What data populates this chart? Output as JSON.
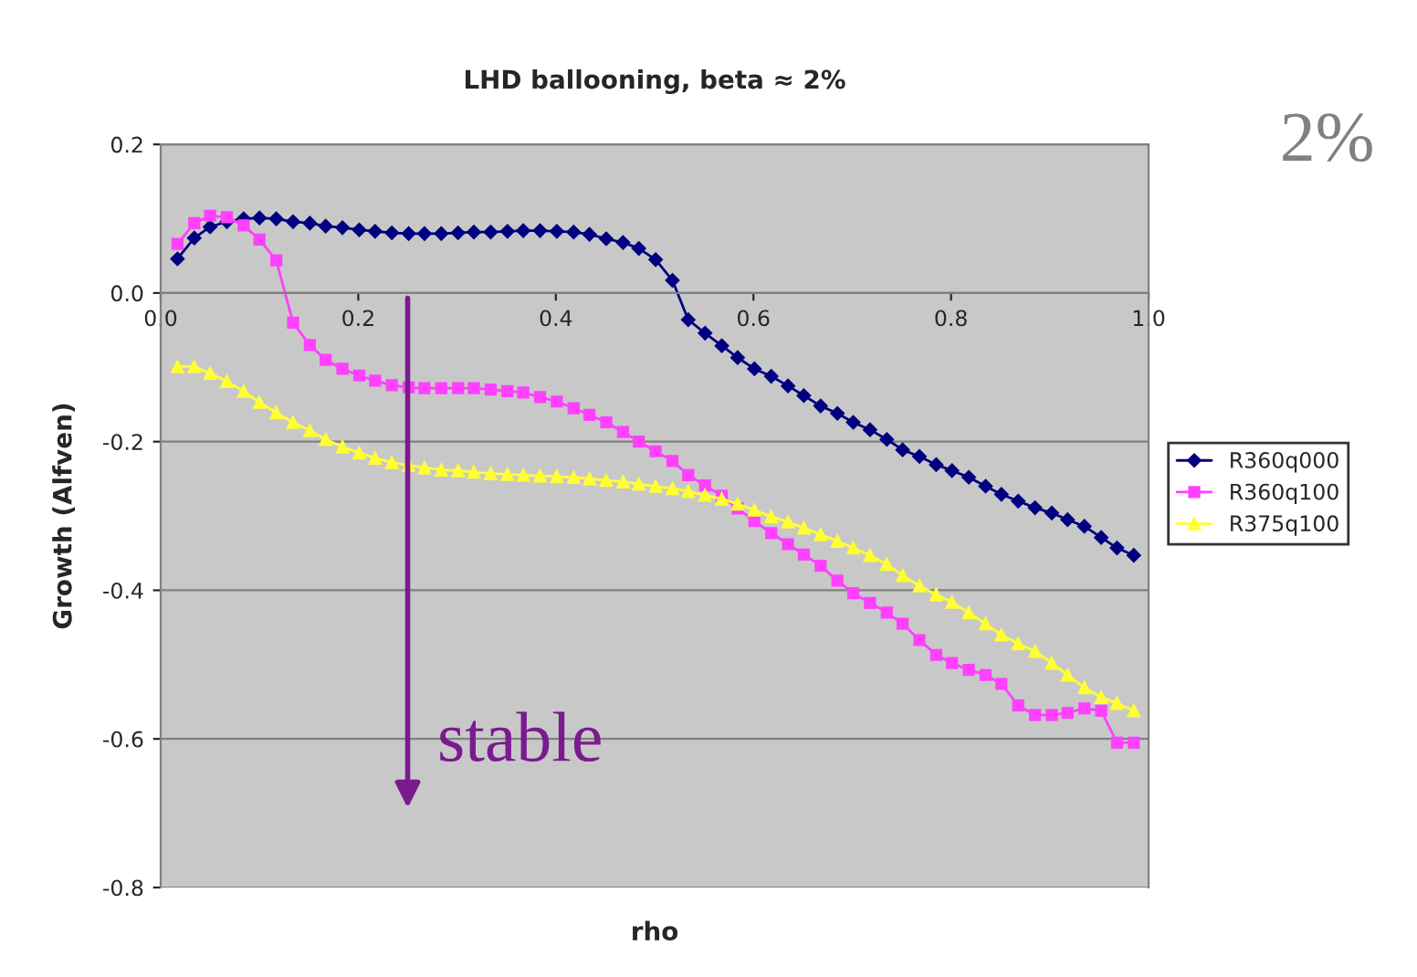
{
  "chart_data": {
    "type": "line",
    "title": "LHD ballooning, beta ≈ 2%",
    "xlabel": "rho",
    "ylabel": "Growth (Alfven)",
    "xlim": [
      0,
      1
    ],
    "ylim": [
      -0.8,
      0.2
    ],
    "xticks": [
      {
        "value": 0,
        "label": "0.0"
      },
      0.2,
      0.4,
      0.6,
      0.8,
      {
        "value": 1,
        "label": "1.0"
      }
    ],
    "yticks": [
      {
        "value": -0.8,
        "label": "-0.8"
      },
      {
        "value": -0.6,
        "label": "-0.6"
      },
      {
        "value": -0.4,
        "label": "-0.4"
      },
      {
        "value": -0.2,
        "label": "-0.2"
      },
      {
        "value": 0,
        "label": "0.0"
      },
      0.2
    ],
    "grid": "y",
    "legend": "right",
    "annotations": [
      "2%",
      "stable"
    ],
    "series": [
      {
        "name": "R360q000",
        "color": "#000080",
        "marker": "diamond",
        "x": [
          0.017,
          0.034,
          0.05,
          0.067,
          0.084,
          0.1,
          0.117,
          0.134,
          0.151,
          0.167,
          0.184,
          0.201,
          0.217,
          0.234,
          0.251,
          0.267,
          0.284,
          0.301,
          0.317,
          0.334,
          0.351,
          0.367,
          0.384,
          0.401,
          0.418,
          0.434,
          0.451,
          0.468,
          0.484,
          0.501,
          0.518,
          0.534,
          0.551,
          0.568,
          0.584,
          0.601,
          0.618,
          0.635,
          0.651,
          0.668,
          0.685,
          0.701,
          0.718,
          0.735,
          0.751,
          0.768,
          0.785,
          0.801,
          0.818,
          0.835,
          0.851,
          0.868,
          0.885,
          0.902,
          0.918,
          0.935,
          0.952,
          0.968,
          0.985
        ],
        "values": [
          0.046,
          0.074,
          0.089,
          0.096,
          0.1,
          0.101,
          0.1,
          0.096,
          0.094,
          0.09,
          0.088,
          0.085,
          0.083,
          0.081,
          0.08,
          0.08,
          0.08,
          0.081,
          0.082,
          0.082,
          0.083,
          0.084,
          0.084,
          0.083,
          0.082,
          0.079,
          0.073,
          0.068,
          0.06,
          0.045,
          0.017,
          -0.036,
          -0.054,
          -0.071,
          -0.087,
          -0.102,
          -0.112,
          -0.125,
          -0.138,
          -0.152,
          -0.162,
          -0.174,
          -0.184,
          -0.197,
          -0.211,
          -0.22,
          -0.231,
          -0.239,
          -0.248,
          -0.26,
          -0.271,
          -0.28,
          -0.289,
          -0.296,
          -0.305,
          -0.314,
          -0.329,
          -0.343,
          -0.353
        ]
      },
      {
        "name": "R360q100",
        "color": "#ff40ff",
        "marker": "square",
        "x": [
          0.017,
          0.034,
          0.05,
          0.067,
          0.084,
          0.1,
          0.117,
          0.134,
          0.151,
          0.167,
          0.184,
          0.201,
          0.217,
          0.234,
          0.251,
          0.267,
          0.284,
          0.301,
          0.317,
          0.334,
          0.351,
          0.367,
          0.384,
          0.401,
          0.418,
          0.434,
          0.451,
          0.468,
          0.484,
          0.501,
          0.518,
          0.534,
          0.551,
          0.568,
          0.584,
          0.601,
          0.618,
          0.635,
          0.651,
          0.668,
          0.685,
          0.701,
          0.718,
          0.735,
          0.751,
          0.768,
          0.785,
          0.801,
          0.818,
          0.835,
          0.851,
          0.868,
          0.885,
          0.902,
          0.918,
          0.935,
          0.952,
          0.968,
          0.985
        ],
        "values": [
          0.066,
          0.094,
          0.104,
          0.102,
          0.091,
          0.072,
          0.044,
          -0.04,
          -0.07,
          -0.09,
          -0.102,
          -0.111,
          -0.118,
          -0.124,
          -0.127,
          -0.128,
          -0.128,
          -0.128,
          -0.128,
          -0.13,
          -0.132,
          -0.134,
          -0.14,
          -0.146,
          -0.155,
          -0.164,
          -0.174,
          -0.187,
          -0.2,
          -0.213,
          -0.226,
          -0.245,
          -0.259,
          -0.273,
          -0.29,
          -0.307,
          -0.323,
          -0.338,
          -0.352,
          -0.367,
          -0.387,
          -0.404,
          -0.417,
          -0.43,
          -0.445,
          -0.467,
          -0.487,
          -0.498,
          -0.507,
          -0.514,
          -0.526,
          -0.555,
          -0.568,
          -0.568,
          -0.565,
          -0.559,
          -0.562,
          -0.605,
          -0.605
        ]
      },
      {
        "name": "R375q100",
        "color": "#ffff33",
        "marker": "triangle",
        "x": [
          0.017,
          0.034,
          0.05,
          0.067,
          0.084,
          0.1,
          0.117,
          0.134,
          0.151,
          0.167,
          0.184,
          0.201,
          0.217,
          0.234,
          0.251,
          0.267,
          0.284,
          0.301,
          0.317,
          0.334,
          0.351,
          0.367,
          0.384,
          0.401,
          0.418,
          0.434,
          0.451,
          0.468,
          0.484,
          0.501,
          0.518,
          0.534,
          0.551,
          0.568,
          0.584,
          0.601,
          0.618,
          0.635,
          0.651,
          0.668,
          0.685,
          0.701,
          0.718,
          0.735,
          0.751,
          0.768,
          0.785,
          0.801,
          0.818,
          0.835,
          0.851,
          0.868,
          0.885,
          0.902,
          0.918,
          0.935,
          0.952,
          0.968,
          0.985
        ],
        "values": [
          -0.099,
          -0.099,
          -0.108,
          -0.119,
          -0.132,
          -0.147,
          -0.161,
          -0.174,
          -0.185,
          -0.197,
          -0.207,
          -0.215,
          -0.222,
          -0.228,
          -0.232,
          -0.235,
          -0.238,
          -0.239,
          -0.241,
          -0.243,
          -0.244,
          -0.245,
          -0.246,
          -0.247,
          -0.248,
          -0.25,
          -0.252,
          -0.254,
          -0.257,
          -0.26,
          -0.263,
          -0.267,
          -0.272,
          -0.277,
          -0.284,
          -0.292,
          -0.301,
          -0.308,
          -0.316,
          -0.325,
          -0.334,
          -0.343,
          -0.353,
          -0.365,
          -0.38,
          -0.394,
          -0.406,
          -0.416,
          -0.43,
          -0.445,
          -0.46,
          -0.472,
          -0.482,
          -0.498,
          -0.514,
          -0.531,
          -0.544,
          -0.552,
          -0.562
        ]
      }
    ]
  }
}
